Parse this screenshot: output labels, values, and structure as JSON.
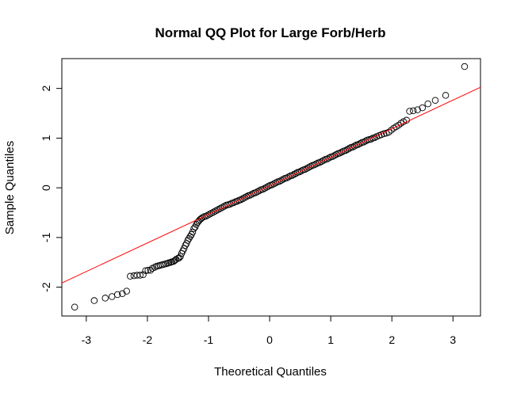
{
  "chart_data": {
    "type": "scatter",
    "title": "Normal QQ Plot for Large Forb/Herb",
    "xlabel": "Theoretical Quantiles",
    "ylabel": "Sample Quantiles",
    "xlim": [
      -3.4,
      3.45
    ],
    "ylim": [
      -2.58,
      2.6
    ],
    "x_ticks": [
      -3,
      -2,
      -1,
      0,
      1,
      2,
      3
    ],
    "x_tick_labels": [
      "-3",
      "-2",
      "-1",
      "0",
      "1",
      "2",
      "3"
    ],
    "y_ticks": [
      -2,
      -1,
      0,
      1,
      2
    ],
    "y_tick_labels": [
      "-2",
      "-1",
      "0",
      "1",
      "2"
    ],
    "grid": false,
    "legend": "none",
    "point_color": "#000000",
    "line_color": "#ff0000",
    "reference_line": {
      "intercept": 0.04,
      "slope": 0.575
    },
    "series": [
      {
        "points": [
          [
            -3.19,
            -2.4
          ],
          [
            -2.87,
            -2.27
          ],
          [
            -2.69,
            -2.22
          ],
          [
            -2.58,
            -2.19
          ],
          [
            -2.49,
            -2.15
          ],
          [
            -2.41,
            -2.13
          ],
          [
            -2.34,
            -2.08
          ],
          [
            -2.28,
            -1.78
          ],
          [
            -2.22,
            -1.77
          ],
          [
            -2.17,
            -1.76
          ],
          [
            -2.12,
            -1.76
          ],
          [
            -2.07,
            -1.75
          ],
          [
            -2.03,
            -1.67
          ],
          [
            -1.99,
            -1.66
          ],
          [
            -1.95,
            -1.66
          ],
          [
            -1.92,
            -1.62
          ],
          [
            -1.88,
            -1.6
          ],
          [
            -1.85,
            -1.58
          ],
          [
            -1.82,
            -1.57
          ],
          [
            -1.79,
            -1.56
          ],
          [
            -1.76,
            -1.55
          ],
          [
            -1.73,
            -1.54
          ],
          [
            -1.7,
            -1.53
          ],
          [
            -1.67,
            -1.52
          ],
          [
            -1.65,
            -1.51
          ],
          [
            -1.62,
            -1.5
          ],
          [
            -1.6,
            -1.49
          ],
          [
            -1.57,
            -1.48
          ],
          [
            -1.55,
            -1.46
          ],
          [
            -1.53,
            -1.44
          ],
          [
            -1.5,
            -1.42
          ],
          [
            -1.48,
            -1.41
          ],
          [
            -1.46,
            -1.38
          ],
          [
            -1.44,
            -1.32
          ],
          [
            -1.42,
            -1.27
          ],
          [
            -1.4,
            -1.22
          ],
          [
            -1.38,
            -1.16
          ],
          [
            -1.36,
            -1.12
          ],
          [
            -1.34,
            -1.06
          ],
          [
            -1.32,
            -1.02
          ],
          [
            -1.3,
            -0.98
          ],
          [
            -1.28,
            -0.94
          ],
          [
            -1.26,
            -0.89
          ],
          [
            -1.24,
            -0.82
          ],
          [
            -1.22,
            -0.79
          ],
          [
            -1.2,
            -0.74
          ],
          [
            -1.18,
            -0.7
          ],
          [
            -1.16,
            -0.67
          ],
          [
            -1.14,
            -0.64
          ],
          [
            -1.12,
            -0.62
          ],
          [
            -1.1,
            -0.6
          ],
          [
            -1.07,
            -0.58
          ],
          [
            -1.04,
            -0.57
          ],
          [
            -1.01,
            -0.55
          ],
          [
            -0.98,
            -0.53
          ],
          [
            -0.95,
            -0.51
          ],
          [
            -0.92,
            -0.49
          ],
          [
            -0.89,
            -0.47
          ],
          [
            -0.86,
            -0.45
          ],
          [
            -0.83,
            -0.43
          ],
          [
            -0.8,
            -0.41
          ],
          [
            -0.77,
            -0.39
          ],
          [
            -0.74,
            -0.37
          ],
          [
            -0.71,
            -0.35
          ],
          [
            -0.68,
            -0.34
          ],
          [
            -0.65,
            -0.33
          ],
          [
            -0.62,
            -0.31
          ],
          [
            -0.59,
            -0.3
          ],
          [
            -0.56,
            -0.28
          ],
          [
            -0.53,
            -0.27
          ],
          [
            -0.5,
            -0.25
          ],
          [
            -0.47,
            -0.24
          ],
          [
            -0.44,
            -0.22
          ],
          [
            -0.41,
            -0.2
          ],
          [
            -0.38,
            -0.18
          ],
          [
            -0.35,
            -0.16
          ],
          [
            -0.32,
            -0.15
          ],
          [
            -0.29,
            -0.13
          ],
          [
            -0.26,
            -0.11
          ],
          [
            -0.23,
            -0.1
          ],
          [
            -0.2,
            -0.08
          ],
          [
            -0.17,
            -0.06
          ],
          [
            -0.14,
            -0.04
          ],
          [
            -0.11,
            -0.03
          ],
          [
            -0.08,
            -0.01
          ],
          [
            -0.05,
            0.01
          ],
          [
            -0.02,
            0.03
          ],
          [
            0.01,
            0.05
          ],
          [
            0.04,
            0.06
          ],
          [
            0.07,
            0.08
          ],
          [
            0.1,
            0.1
          ],
          [
            0.13,
            0.12
          ],
          [
            0.16,
            0.13
          ],
          [
            0.19,
            0.15
          ],
          [
            0.22,
            0.17
          ],
          [
            0.25,
            0.19
          ],
          [
            0.28,
            0.2
          ],
          [
            0.31,
            0.22
          ],
          [
            0.34,
            0.24
          ],
          [
            0.37,
            0.25
          ],
          [
            0.4,
            0.27
          ],
          [
            0.43,
            0.29
          ],
          [
            0.46,
            0.31
          ],
          [
            0.49,
            0.32
          ],
          [
            0.52,
            0.34
          ],
          [
            0.55,
            0.36
          ],
          [
            0.58,
            0.37
          ],
          [
            0.61,
            0.39
          ],
          [
            0.64,
            0.41
          ],
          [
            0.67,
            0.43
          ],
          [
            0.7,
            0.45
          ],
          [
            0.73,
            0.46
          ],
          [
            0.76,
            0.48
          ],
          [
            0.79,
            0.5
          ],
          [
            0.82,
            0.51
          ],
          [
            0.85,
            0.53
          ],
          [
            0.88,
            0.55
          ],
          [
            0.91,
            0.57
          ],
          [
            0.94,
            0.58
          ],
          [
            0.97,
            0.6
          ],
          [
            1.0,
            0.62
          ],
          [
            1.03,
            0.63
          ],
          [
            1.06,
            0.65
          ],
          [
            1.09,
            0.67
          ],
          [
            1.12,
            0.69
          ],
          [
            1.15,
            0.7
          ],
          [
            1.18,
            0.72
          ],
          [
            1.21,
            0.74
          ],
          [
            1.24,
            0.75
          ],
          [
            1.27,
            0.77
          ],
          [
            1.3,
            0.79
          ],
          [
            1.33,
            0.81
          ],
          [
            1.36,
            0.82
          ],
          [
            1.39,
            0.84
          ],
          [
            1.42,
            0.86
          ],
          [
            1.45,
            0.87
          ],
          [
            1.48,
            0.89
          ],
          [
            1.51,
            0.91
          ],
          [
            1.54,
            0.92
          ],
          [
            1.57,
            0.94
          ],
          [
            1.6,
            0.96
          ],
          [
            1.63,
            0.97
          ],
          [
            1.66,
            0.98
          ],
          [
            1.69,
            1.0
          ],
          [
            1.72,
            1.01
          ],
          [
            1.75,
            1.03
          ],
          [
            1.79,
            1.05
          ],
          [
            1.83,
            1.07
          ],
          [
            1.87,
            1.09
          ],
          [
            1.91,
            1.1
          ],
          [
            1.95,
            1.12
          ],
          [
            1.99,
            1.16
          ],
          [
            2.03,
            1.2
          ],
          [
            2.07,
            1.23
          ],
          [
            2.11,
            1.26
          ],
          [
            2.15,
            1.3
          ],
          [
            2.19,
            1.33
          ],
          [
            2.24,
            1.36
          ],
          [
            2.29,
            1.54
          ],
          [
            2.35,
            1.55
          ],
          [
            2.42,
            1.57
          ],
          [
            2.5,
            1.61
          ],
          [
            2.59,
            1.69
          ],
          [
            2.71,
            1.76
          ],
          [
            2.88,
            1.86
          ],
          [
            3.19,
            2.44
          ]
        ]
      }
    ]
  }
}
